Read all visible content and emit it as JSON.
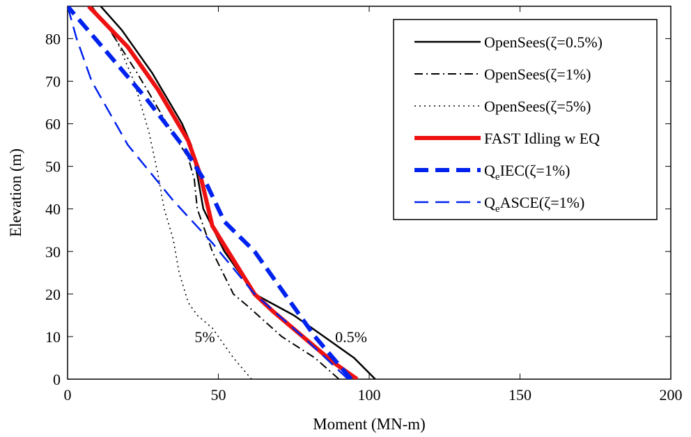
{
  "chart_data": {
    "type": "line",
    "xlabel": "Moment (MN-m)",
    "ylabel": "Elevation (m)",
    "xlim": [
      0,
      200
    ],
    "ylim": [
      0,
      87.6
    ],
    "xticks": [
      0,
      50,
      100,
      150,
      200
    ],
    "yticks": [
      0,
      10,
      20,
      30,
      40,
      50,
      60,
      70,
      80
    ],
    "legend_position": "top-right",
    "series": [
      {
        "name": "OpenSees(ζ=0.5%)",
        "color": "#000000",
        "style": "solid",
        "x": [
          102,
          95,
          85,
          75,
          62,
          52,
          45,
          43,
          41,
          38,
          28,
          18,
          11
        ],
        "y": [
          0,
          5,
          10,
          15,
          20,
          30,
          40,
          48,
          55,
          60,
          72,
          82,
          87.6
        ]
      },
      {
        "name": "OpenSees(ζ=1%)",
        "color": "#000000",
        "style": "dashdot",
        "x": [
          90,
          82,
          71,
          60,
          55,
          48,
          43,
          42,
          40,
          33,
          23,
          14,
          8
        ],
        "y": [
          0,
          5,
          10,
          17,
          20,
          30,
          40,
          47,
          52,
          60,
          72,
          82,
          87.6
        ]
      },
      {
        "name": "OpenSees(ζ=5%)",
        "color": "#000000",
        "style": "dotted",
        "x": [
          61,
          55,
          48,
          43,
          40,
          37,
          35,
          32,
          30,
          27,
          22,
          16,
          8
        ],
        "y": [
          0,
          5,
          12,
          15,
          18,
          25,
          33,
          40,
          48,
          58,
          70,
          80,
          87.6
        ]
      },
      {
        "name": "FAST Idling w EQ",
        "color": "#ee1111",
        "style": "solid-thick",
        "x": [
          96,
          88,
          78,
          68,
          62,
          55,
          48,
          46,
          44,
          40,
          30,
          20,
          7
        ],
        "y": [
          0,
          4,
          10,
          16,
          20,
          28,
          36,
          42,
          48,
          56,
          68,
          78,
          87.6
        ]
      },
      {
        "name": "Q_eIEC(ζ=1%)",
        "color": "#0022ee",
        "style": "dashed-thick",
        "x": [
          94,
          82,
          72,
          62,
          52,
          46,
          38,
          26,
          14,
          0
        ],
        "y": [
          0,
          10,
          20,
          30,
          37,
          46,
          55,
          66,
          76,
          87.6
        ]
      },
      {
        "name": "Q_eASCE(ζ=1%)",
        "color": "#0022ee",
        "style": "dashed",
        "x": [
          93,
          78,
          62,
          48,
          35,
          20,
          8,
          3,
          0
        ],
        "y": [
          0,
          10,
          20,
          32,
          42,
          55,
          70,
          80,
          87.6
        ]
      }
    ],
    "legend": [
      {
        "main": "OpenSees(ζ=0.5%)",
        "sub": "",
        "rest": ""
      },
      {
        "main": "OpenSees(ζ=1%)",
        "sub": "",
        "rest": ""
      },
      {
        "main": "OpenSees(ζ=5%)",
        "sub": "",
        "rest": ""
      },
      {
        "main": "FAST Idling w EQ",
        "sub": "",
        "rest": ""
      },
      {
        "main": "Q",
        "sub": "e",
        "rest": "IEC(ζ=1%)"
      },
      {
        "main": "Q",
        "sub": "e",
        "rest": "ASCE(ζ=1%)"
      }
    ],
    "annotations": [
      {
        "text": "5%",
        "x": 45.5,
        "y": 10
      },
      {
        "text": "0.5%",
        "x": 94,
        "y": 10
      }
    ]
  }
}
